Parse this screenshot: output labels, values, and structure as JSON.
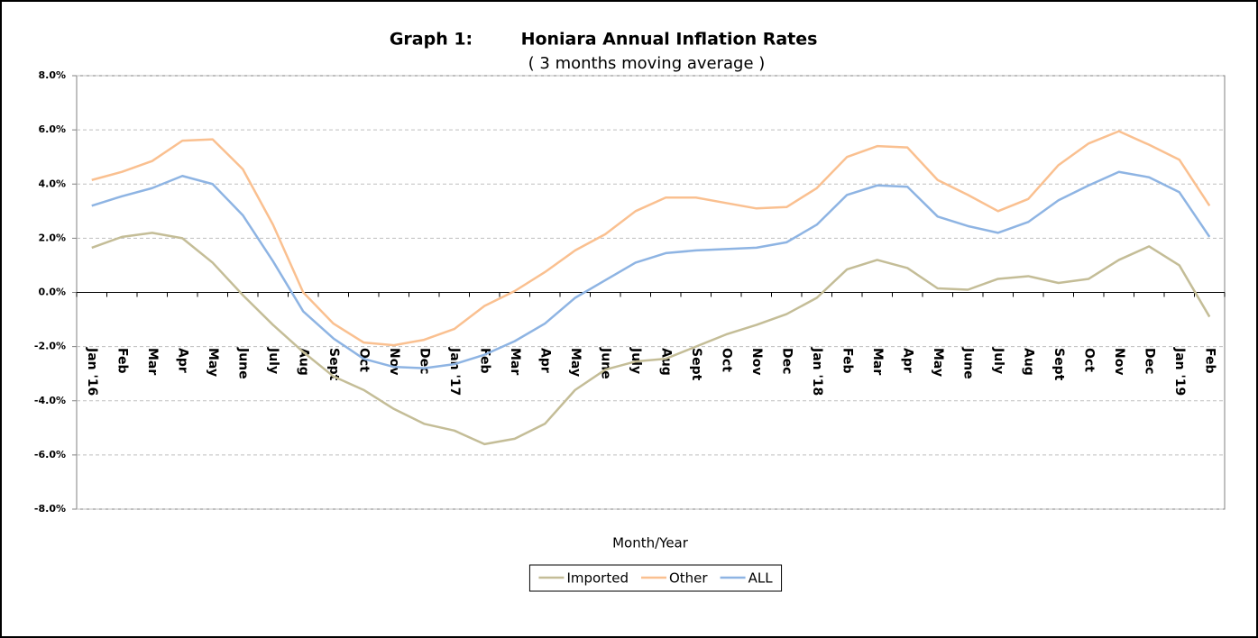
{
  "chart_data": {
    "type": "line",
    "graph_label": "Graph 1:",
    "title": "Honiara Annual Inflation Rates",
    "subtitle": "( 3 months moving average )",
    "x_label": "Month/Year",
    "categories": [
      "Jan '16",
      "Feb",
      "Mar",
      "Apr",
      "May",
      "June",
      "July",
      "Aug",
      "Sept",
      "Oct",
      "Nov",
      "Dec",
      "Jan '17",
      "Feb",
      "Mar",
      "Apr",
      "May",
      "June",
      "July",
      "Aug",
      "Sept",
      "Oct",
      "Nov",
      "Dec",
      "Jan '18",
      "Feb",
      "Mar",
      "Apr",
      "May",
      "June",
      "July",
      "Aug",
      "Sept",
      "Oct",
      "Nov",
      "Dec",
      "Jan '19",
      "Feb"
    ],
    "series": [
      {
        "name": "Imported",
        "color": "#c4bd97",
        "values": [
          1.65,
          2.05,
          2.2,
          2.0,
          1.1,
          -0.1,
          -1.2,
          -2.2,
          -3.1,
          -3.6,
          -4.3,
          -4.85,
          -5.1,
          -5.6,
          -5.4,
          -4.85,
          -3.6,
          -2.85,
          -2.55,
          -2.45,
          -2.0,
          -1.55,
          -1.2,
          -0.8,
          -0.2,
          0.85,
          1.2,
          0.9,
          0.15,
          0.1,
          0.5,
          0.6,
          0.35,
          0.5,
          1.2,
          1.7,
          1.0,
          -0.9
        ]
      },
      {
        "name": "Other",
        "color": "#fac090",
        "values": [
          4.15,
          4.45,
          4.85,
          5.6,
          5.65,
          4.55,
          2.5,
          0.0,
          -1.15,
          -1.85,
          -1.95,
          -1.75,
          -1.35,
          -0.5,
          0.05,
          0.75,
          1.55,
          2.15,
          3.0,
          3.5,
          3.5,
          3.3,
          3.1,
          3.15,
          3.85,
          5.0,
          5.4,
          5.35,
          4.15,
          3.6,
          3.0,
          3.45,
          4.7,
          5.5,
          5.95,
          5.45,
          4.9,
          3.2
        ]
      },
      {
        "name": "ALL",
        "color": "#8eb4e3",
        "values": [
          3.2,
          3.55,
          3.85,
          4.3,
          4.0,
          2.85,
          1.15,
          -0.7,
          -1.7,
          -2.45,
          -2.75,
          -2.8,
          -2.65,
          -2.3,
          -1.8,
          -1.15,
          -0.2,
          0.45,
          1.1,
          1.45,
          1.55,
          1.6,
          1.65,
          1.85,
          2.5,
          3.6,
          3.95,
          3.9,
          2.8,
          2.45,
          2.2,
          2.6,
          3.4,
          3.95,
          4.45,
          4.25,
          3.7,
          2.05
        ]
      }
    ],
    "ylim": [
      -8,
      8
    ],
    "yticks": [
      {
        "value": -8,
        "label": "-8.0%"
      },
      {
        "value": -6,
        "label": "-6.0%"
      },
      {
        "value": -4,
        "label": "-4.0%"
      },
      {
        "value": -2,
        "label": "-2.0%"
      },
      {
        "value": 0,
        "label": "0.0%"
      },
      {
        "value": 2,
        "label": "2.0%"
      },
      {
        "value": 4,
        "label": "4.0%"
      },
      {
        "value": 6,
        "label": "6.0%"
      },
      {
        "value": 8,
        "label": "8.0%"
      }
    ],
    "grid": true,
    "legend": "bottom"
  }
}
